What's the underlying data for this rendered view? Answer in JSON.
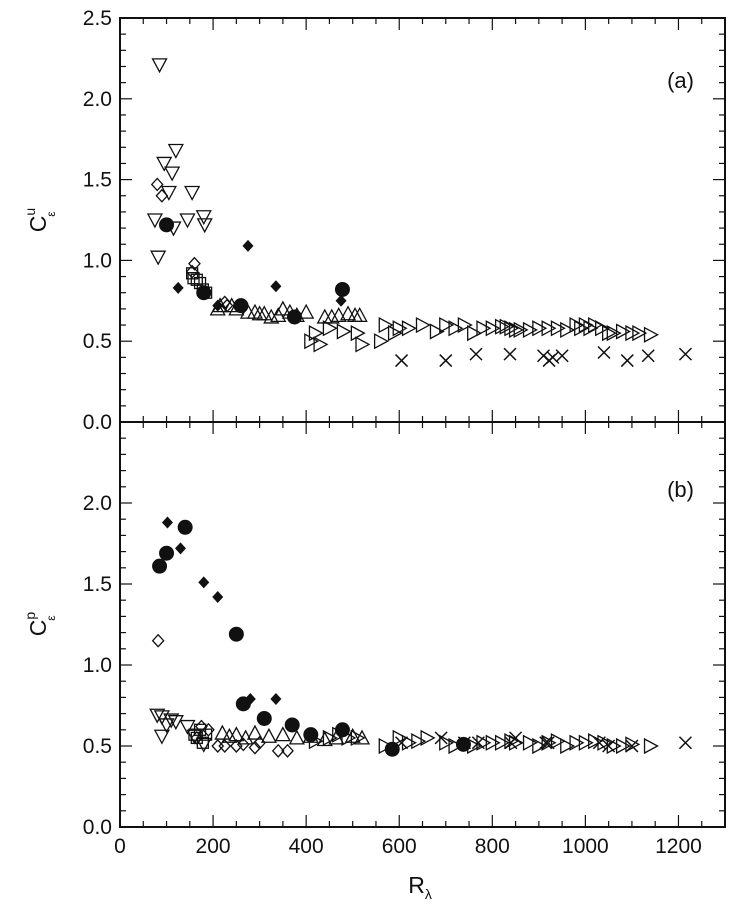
{
  "chart_data": [
    {
      "type": "scatter",
      "panel": "a",
      "panel_label": "(a)",
      "ylabel": {
        "main": "C",
        "sup": "u",
        "sub": "ε"
      },
      "xlabel": "",
      "xlim": [
        0,
        1300
      ],
      "ylim": [
        0,
        2.5
      ],
      "yticks": [
        "0.0",
        "0.5",
        "1.0",
        "1.5",
        "2.0",
        "2.5"
      ],
      "grid": false,
      "legend": "none",
      "series": [
        {
          "marker": "triangle-down",
          "points": [
            [
              85,
              2.21
            ],
            [
              95,
              1.6
            ],
            [
              105,
              1.42
            ],
            [
              112,
              1.54
            ],
            [
              120,
              1.68
            ],
            [
              145,
              1.25
            ],
            [
              155,
              1.42
            ],
            [
              180,
              1.27
            ],
            [
              182,
              1.22
            ],
            [
              75,
              1.25
            ],
            [
              82,
              1.02
            ],
            [
              115,
              1.2
            ]
          ]
        },
        {
          "marker": "diamond-open",
          "points": [
            [
              80,
              1.47
            ],
            [
              90,
              1.4
            ],
            [
              160,
              0.98
            ],
            [
              155,
              0.93
            ],
            [
              225,
              0.74
            ],
            [
              230,
              0.72
            ],
            [
              255,
              0.72
            ]
          ]
        },
        {
          "marker": "circle-filled",
          "points": [
            [
              100,
              1.22
            ],
            [
              180,
              0.8
            ],
            [
              260,
              0.72
            ],
            [
              375,
              0.65
            ],
            [
              478,
              0.82
            ]
          ]
        },
        {
          "marker": "diamond-filled",
          "points": [
            [
              98,
              1.22
            ],
            [
              125,
              0.83
            ],
            [
              210,
              0.72
            ],
            [
              275,
              1.09
            ],
            [
              335,
              0.84
            ],
            [
              475,
              0.75
            ]
          ]
        },
        {
          "marker": "square-open",
          "points": [
            [
              155,
              0.92
            ],
            [
              165,
              0.88
            ],
            [
              172,
              0.86
            ],
            [
              178,
              0.82
            ],
            [
              185,
              0.8
            ],
            [
              158,
              0.89
            ]
          ]
        },
        {
          "marker": "triangle-up",
          "points": [
            [
              210,
              0.7
            ],
            [
              215,
              0.72
            ],
            [
              240,
              0.72
            ],
            [
              250,
              0.7
            ],
            [
              275,
              0.68
            ],
            [
              290,
              0.68
            ],
            [
              300,
              0.67
            ],
            [
              310,
              0.67
            ],
            [
              325,
              0.65
            ],
            [
              340,
              0.66
            ],
            [
              350,
              0.7
            ],
            [
              365,
              0.68
            ],
            [
              380,
              0.66
            ],
            [
              400,
              0.68
            ],
            [
              440,
              0.65
            ],
            [
              455,
              0.65
            ],
            [
              470,
              0.66
            ],
            [
              490,
              0.67
            ],
            [
              505,
              0.66
            ],
            [
              515,
              0.66
            ]
          ]
        },
        {
          "marker": "triangle-right",
          "points": [
            [
              410,
              0.5
            ],
            [
              420,
              0.55
            ],
            [
              430,
              0.48
            ],
            [
              450,
              0.58
            ],
            [
              480,
              0.56
            ],
            [
              510,
              0.55
            ],
            [
              520,
              0.48
            ],
            [
              560,
              0.5
            ],
            [
              570,
              0.6
            ],
            [
              590,
              0.55
            ],
            [
              600,
              0.58
            ],
            [
              620,
              0.58
            ],
            [
              650,
              0.6
            ],
            [
              680,
              0.56
            ],
            [
              700,
              0.6
            ],
            [
              720,
              0.58
            ],
            [
              740,
              0.6
            ],
            [
              760,
              0.55
            ],
            [
              780,
              0.58
            ],
            [
              800,
              0.58
            ],
            [
              820,
              0.59
            ],
            [
              830,
              0.59
            ],
            [
              840,
              0.58
            ],
            [
              850,
              0.57
            ],
            [
              860,
              0.57
            ],
            [
              880,
              0.57
            ],
            [
              900,
              0.58
            ],
            [
              920,
              0.58
            ],
            [
              940,
              0.58
            ],
            [
              960,
              0.57
            ],
            [
              980,
              0.6
            ],
            [
              990,
              0.58
            ],
            [
              1000,
              0.6
            ],
            [
              1010,
              0.58
            ],
            [
              1020,
              0.6
            ],
            [
              1035,
              0.58
            ],
            [
              1050,
              0.55
            ],
            [
              1060,
              0.55
            ],
            [
              1080,
              0.56
            ],
            [
              1100,
              0.55
            ],
            [
              1115,
              0.55
            ],
            [
              1140,
              0.54
            ]
          ]
        },
        {
          "marker": "cross",
          "points": [
            [
              605,
              0.38
            ],
            [
              700,
              0.38
            ],
            [
              765,
              0.42
            ],
            [
              838,
              0.42
            ],
            [
              910,
              0.41
            ],
            [
              922,
              0.38
            ],
            [
              930,
              0.4
            ],
            [
              950,
              0.41
            ],
            [
              1040,
              0.43
            ],
            [
              1090,
              0.38
            ],
            [
              1135,
              0.41
            ],
            [
              1215,
              0.42
            ]
          ]
        }
      ]
    },
    {
      "type": "scatter",
      "panel": "b",
      "panel_label": "(b)",
      "ylabel": {
        "main": "C",
        "sup": "p",
        "sub": "ε"
      },
      "xlabel": {
        "main": "R",
        "sub": "λ"
      },
      "xlim": [
        0,
        1300
      ],
      "ylim": [
        0,
        2.5
      ],
      "xticks": [
        "0",
        "200",
        "400",
        "600",
        "800",
        "1000",
        "1200"
      ],
      "yticks": [
        "0.0",
        "0.5",
        "1.0",
        "1.5",
        "2.0"
      ],
      "grid": false,
      "legend": "none",
      "series": [
        {
          "marker": "circle-filled",
          "points": [
            [
              85,
              1.61
            ],
            [
              100,
              1.69
            ],
            [
              140,
              1.85
            ],
            [
              250,
              1.19
            ],
            [
              265,
              0.76
            ],
            [
              310,
              0.67
            ],
            [
              370,
              0.63
            ],
            [
              410,
              0.57
            ],
            [
              478,
              0.6
            ],
            [
              585,
              0.48
            ],
            [
              738,
              0.51
            ]
          ]
        },
        {
          "marker": "diamond-filled",
          "points": [
            [
              102,
              1.88
            ],
            [
              130,
              1.72
            ],
            [
              180,
              1.51
            ],
            [
              210,
              1.42
            ],
            [
              280,
              0.79
            ],
            [
              335,
              0.79
            ]
          ]
        },
        {
          "marker": "diamond-open",
          "points": [
            [
              82,
              1.15
            ],
            [
              165,
              0.55
            ],
            [
              175,
              0.62
            ],
            [
              190,
              0.6
            ],
            [
              210,
              0.5
            ],
            [
              225,
              0.5
            ],
            [
              250,
              0.5
            ],
            [
              265,
              0.51
            ],
            [
              290,
              0.49
            ],
            [
              300,
              0.52
            ],
            [
              340,
              0.47
            ],
            [
              360,
              0.47
            ]
          ]
        },
        {
          "marker": "triangle-down",
          "points": [
            [
              80,
              0.69
            ],
            [
              90,
              0.68
            ],
            [
              100,
              0.63
            ],
            [
              110,
              0.66
            ],
            [
              120,
              0.65
            ],
            [
              145,
              0.62
            ],
            [
              160,
              0.56
            ],
            [
              180,
              0.51
            ],
            [
              90,
              0.56
            ]
          ]
        },
        {
          "marker": "square-open",
          "points": [
            [
              160,
              0.57
            ],
            [
              165,
              0.55
            ],
            [
              172,
              0.6
            ],
            [
              178,
              0.52
            ],
            [
              185,
              0.57
            ]
          ]
        },
        {
          "marker": "triangle-up",
          "points": [
            [
              220,
              0.58
            ],
            [
              235,
              0.56
            ],
            [
              250,
              0.57
            ],
            [
              270,
              0.55
            ],
            [
              290,
              0.58
            ],
            [
              320,
              0.56
            ],
            [
              350,
              0.57
            ],
            [
              380,
              0.55
            ],
            [
              410,
              0.56
            ],
            [
              440,
              0.54
            ],
            [
              465,
              0.55
            ],
            [
              500,
              0.56
            ],
            [
              520,
              0.55
            ]
          ]
        },
        {
          "marker": "triangle-right",
          "points": [
            [
              420,
              0.53
            ],
            [
              450,
              0.55
            ],
            [
              470,
              0.57
            ],
            [
              490,
              0.55
            ],
            [
              510,
              0.55
            ],
            [
              570,
              0.5
            ],
            [
              600,
              0.55
            ],
            [
              620,
              0.52
            ],
            [
              640,
              0.53
            ],
            [
              660,
              0.55
            ],
            [
              700,
              0.52
            ],
            [
              720,
              0.5
            ],
            [
              760,
              0.5
            ],
            [
              780,
              0.52
            ],
            [
              800,
              0.52
            ],
            [
              820,
              0.52
            ],
            [
              840,
              0.53
            ],
            [
              850,
              0.52
            ],
            [
              880,
              0.52
            ],
            [
              900,
              0.5
            ],
            [
              920,
              0.52
            ],
            [
              940,
              0.53
            ],
            [
              960,
              0.5
            ],
            [
              980,
              0.52
            ],
            [
              1000,
              0.52
            ],
            [
              1020,
              0.53
            ],
            [
              1040,
              0.52
            ],
            [
              1060,
              0.5
            ],
            [
              1080,
              0.5
            ],
            [
              1100,
              0.51
            ],
            [
              1140,
              0.5
            ]
          ]
        },
        {
          "marker": "cross",
          "points": [
            [
              605,
              0.52
            ],
            [
              690,
              0.55
            ],
            [
              740,
              0.52
            ],
            [
              770,
              0.52
            ],
            [
              840,
              0.52
            ],
            [
              850,
              0.55
            ],
            [
              915,
              0.52
            ],
            [
              920,
              0.52
            ],
            [
              1030,
              0.52
            ],
            [
              1050,
              0.5
            ],
            [
              1100,
              0.5
            ],
            [
              1215,
              0.52
            ]
          ]
        }
      ]
    }
  ]
}
